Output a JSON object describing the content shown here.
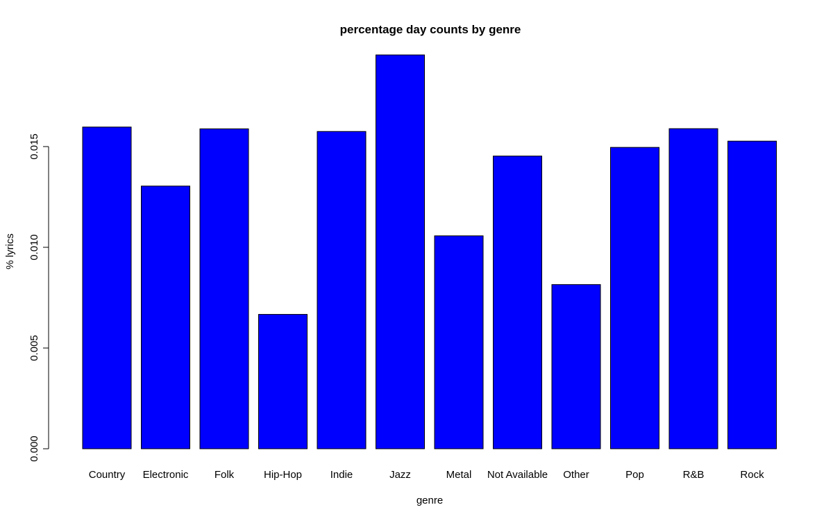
{
  "chart_data": {
    "type": "bar",
    "title": "percentage day counts by genre",
    "xlabel": "genre",
    "ylabel": "% lyrics",
    "ylim": [
      0,
      0.0195
    ],
    "yticks": [
      0.0,
      0.005,
      0.01,
      0.015
    ],
    "ytick_labels": [
      "0.000",
      "0.005",
      "0.010",
      "0.015"
    ],
    "grid": false,
    "bar_color": "#0000ff",
    "categories": [
      "Country",
      "Electronic",
      "Folk",
      "Hip-Hop",
      "Indie",
      "Jazz",
      "Metal",
      "Not Available",
      "Other",
      "Pop",
      "R&B",
      "Rock"
    ],
    "values": [
      0.01597,
      0.01304,
      0.01588,
      0.00667,
      0.01575,
      0.01955,
      0.01057,
      0.01453,
      0.00815,
      0.01496,
      0.01589,
      0.01527
    ]
  }
}
